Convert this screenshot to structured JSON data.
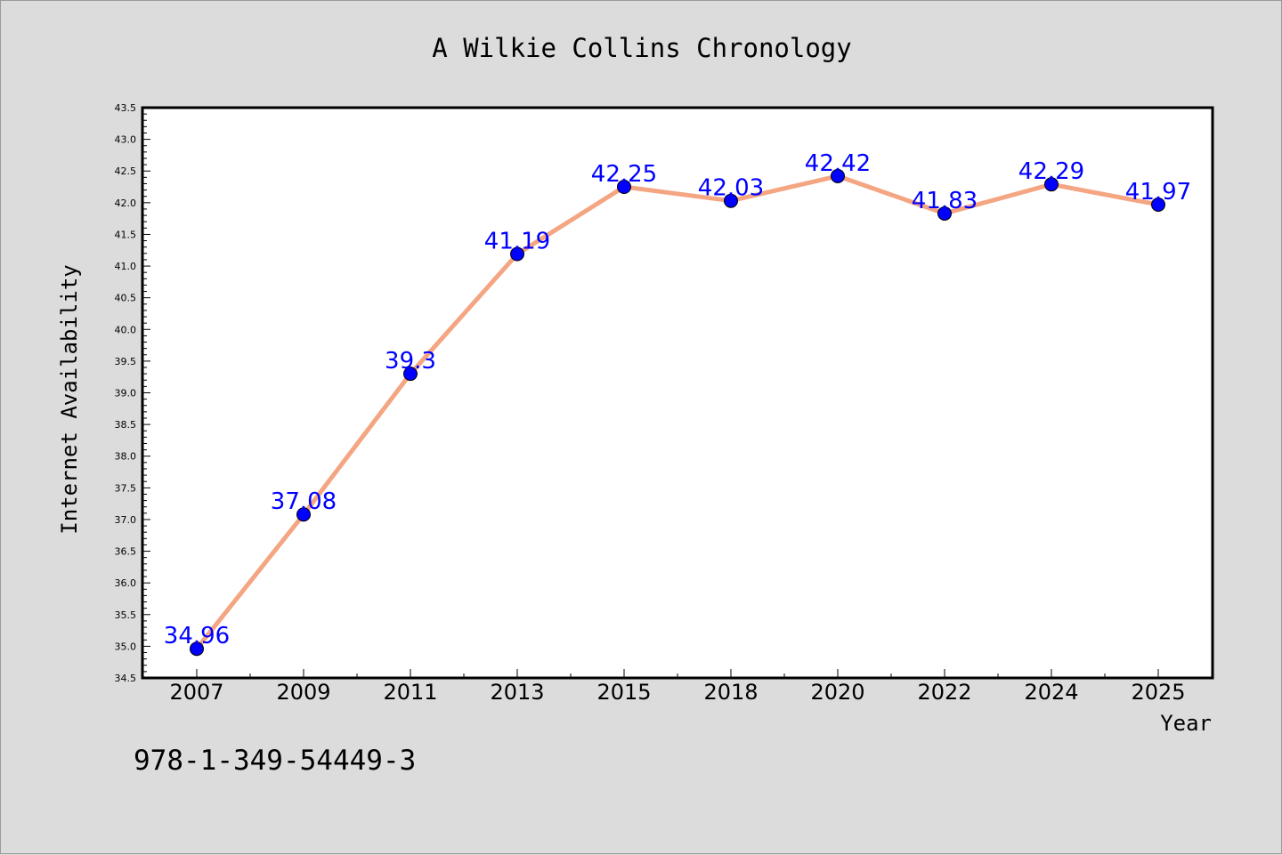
{
  "chart_data": {
    "type": "line",
    "title": "A Wilkie Collins Chronology",
    "xlabel": "Year",
    "ylabel": "Internet Availability",
    "categories": [
      "2007",
      "2009",
      "2011",
      "2013",
      "2015",
      "2018",
      "2020",
      "2022",
      "2024",
      "2025"
    ],
    "series": [
      {
        "values": [
          34.96,
          37.08,
          39.3,
          41.19,
          42.25,
          42.03,
          42.42,
          41.83,
          42.29,
          41.97
        ],
        "labels": [
          "34.96",
          "37.08",
          "39.3",
          "41.19",
          "42.25",
          "42.03",
          "42.42",
          "41.83",
          "42.29",
          "41.97"
        ]
      }
    ],
    "ylim": [
      34.5,
      43.5
    ],
    "yticks": [
      "34.5",
      "35.0",
      "35.5",
      "36.0",
      "36.5",
      "37.0",
      "37.5",
      "38.0",
      "38.5",
      "39.0",
      "39.5",
      "40.0",
      "40.5",
      "41.0",
      "41.5",
      "42.0",
      "42.5",
      "43.0",
      "43.5"
    ],
    "grid": false,
    "line_color": "#f4a582",
    "marker_color": "#0000ff",
    "label_color": "#0000ff",
    "background": "#dcdcdc",
    "plot_background": "#ffffff"
  },
  "footer": {
    "text": "978-1-349-54449-3"
  }
}
